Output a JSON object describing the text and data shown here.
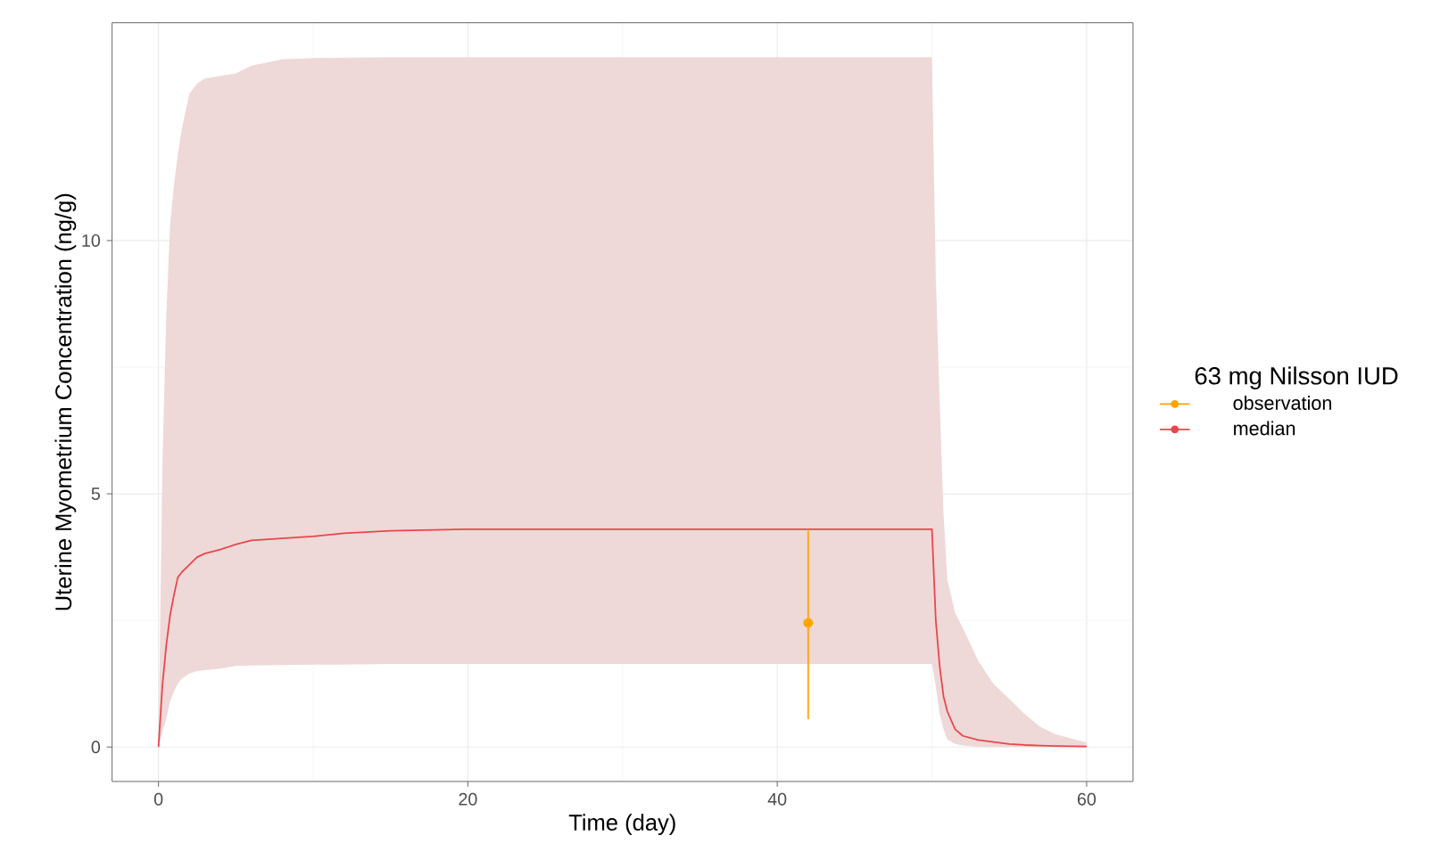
{
  "chart_data": {
    "type": "line",
    "xlabel": "Time (day)",
    "ylabel": "Uterine Myometrium Concentration (ng/g)",
    "legend_title": "63 mg Nilsson IUD",
    "xlim": [
      -3,
      63
    ],
    "ylim": [
      -0.68,
      14.3
    ],
    "xticks": [
      0,
      20,
      40,
      60
    ],
    "yticks": [
      0,
      5,
      10
    ],
    "grid": true,
    "legend": "right",
    "series": [
      {
        "name": "observation",
        "type": "scatter",
        "color": "#ffa500",
        "marker": "circle",
        "x": [
          42
        ],
        "values": [
          2.45
        ],
        "errors": [
          [
            0.55,
            4.3
          ]
        ]
      },
      {
        "name": "median",
        "color": "#e8474a",
        "marker": "none",
        "line_style": "solid",
        "x": [
          0,
          0.25,
          0.5,
          0.75,
          1,
          1.25,
          1.5,
          2,
          2.5,
          3,
          4,
          5,
          6,
          8,
          10,
          12,
          15,
          20,
          30,
          40,
          50,
          50.25,
          50.5,
          50.75,
          51,
          51.5,
          52,
          53,
          54,
          55,
          56,
          57,
          58,
          60
        ],
        "values": [
          0,
          1.2,
          2.0,
          2.6,
          3.0,
          3.35,
          3.45,
          3.6,
          3.75,
          3.82,
          3.9,
          4.0,
          4.08,
          4.12,
          4.16,
          4.22,
          4.27,
          4.3,
          4.3,
          4.3,
          4.3,
          2.5,
          1.6,
          1.0,
          0.7,
          0.35,
          0.22,
          0.14,
          0.1,
          0.06,
          0.04,
          0.03,
          0.02,
          0.01
        ],
        "lower": [
          0,
          0.3,
          0.55,
          0.9,
          1.1,
          1.25,
          1.35,
          1.45,
          1.5,
          1.52,
          1.55,
          1.6,
          1.61,
          1.62,
          1.63,
          1.63,
          1.64,
          1.64,
          1.64,
          1.64,
          1.64,
          1.2,
          0.65,
          0.35,
          0.15,
          0.06,
          0.03,
          0,
          0,
          0,
          0,
          0,
          0,
          0
        ],
        "upper": [
          0,
          5.5,
          8.5,
          10.3,
          11.1,
          11.7,
          12.2,
          12.9,
          13.1,
          13.2,
          13.25,
          13.3,
          13.45,
          13.58,
          13.6,
          13.61,
          13.62,
          13.62,
          13.62,
          13.62,
          13.62,
          9.3,
          6.8,
          4.6,
          3.3,
          2.65,
          2.35,
          1.7,
          1.24,
          0.95,
          0.65,
          0.4,
          0.25,
          0.09
        ]
      }
    ]
  }
}
